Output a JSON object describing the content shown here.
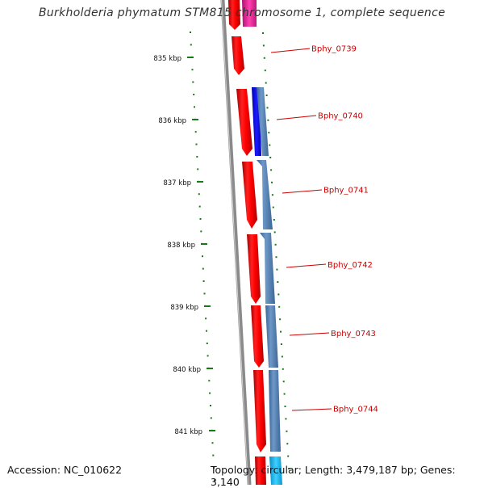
{
  "title": "Burkholderia phymatum STM815 chromosome 1, complete sequence",
  "accession": "Accession: NC_010622",
  "topology": "Topology: circular; Length: 3,479,187 bp; Genes: 3,140",
  "ruler": {
    "labels": [
      "835 kbp",
      "836 kbp",
      "837 kbp",
      "838 kbp",
      "839 kbp",
      "840 kbp",
      "841 kbp"
    ]
  },
  "genes": [
    {
      "name": "Bphy_0739"
    },
    {
      "name": "Bphy_0740"
    },
    {
      "name": "Bphy_0741"
    },
    {
      "name": "Bphy_0742"
    },
    {
      "name": "Bphy_0743"
    },
    {
      "name": "Bphy_0744"
    }
  ],
  "colors": {
    "forward_cds": "#ff0000",
    "reverse_cds": "#4f7fb5",
    "reverse_cds_dark": "#1010e0",
    "top_feature": "#e0208a",
    "bottom_feature": "#1ab6ee",
    "backbone": "#8a8a8a",
    "ticks": "#1a7a1a",
    "label": "#cc0000"
  }
}
